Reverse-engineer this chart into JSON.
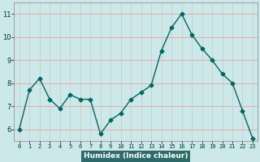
{
  "x": [
    0,
    1,
    2,
    3,
    4,
    5,
    6,
    7,
    8,
    9,
    10,
    11,
    12,
    13,
    14,
    15,
    16,
    17,
    18,
    19,
    20,
    21,
    22,
    23
  ],
  "y": [
    6.0,
    7.7,
    8.2,
    7.3,
    6.9,
    7.5,
    7.3,
    7.3,
    5.8,
    6.4,
    6.7,
    7.3,
    7.6,
    7.9,
    9.4,
    10.4,
    11.0,
    10.1,
    9.5,
    9.0,
    8.4,
    8.0,
    6.8,
    5.6
  ],
  "xlabel": "Humidex (Indice chaleur)",
  "ylim": [
    5.5,
    11.5
  ],
  "xlim": [
    -0.5,
    23.5
  ],
  "line_color": "#006666",
  "marker": "D",
  "bg_color": "#cce8e8",
  "grid_color": "#f0b0b0",
  "grid_color_v": "#d0d0d0",
  "tick_labels": [
    "0",
    "1",
    "2",
    "3",
    "4",
    "5",
    "6",
    "7",
    "8",
    "9",
    "10",
    "11",
    "12",
    "13",
    "14",
    "15",
    "16",
    "17",
    "18",
    "19",
    "20",
    "21",
    "22",
    "23"
  ],
  "yticks": [
    6,
    7,
    8,
    9,
    10,
    11
  ],
  "xlabel_bg": "#2d6b6b",
  "xlabel_fg": "#ffffff"
}
